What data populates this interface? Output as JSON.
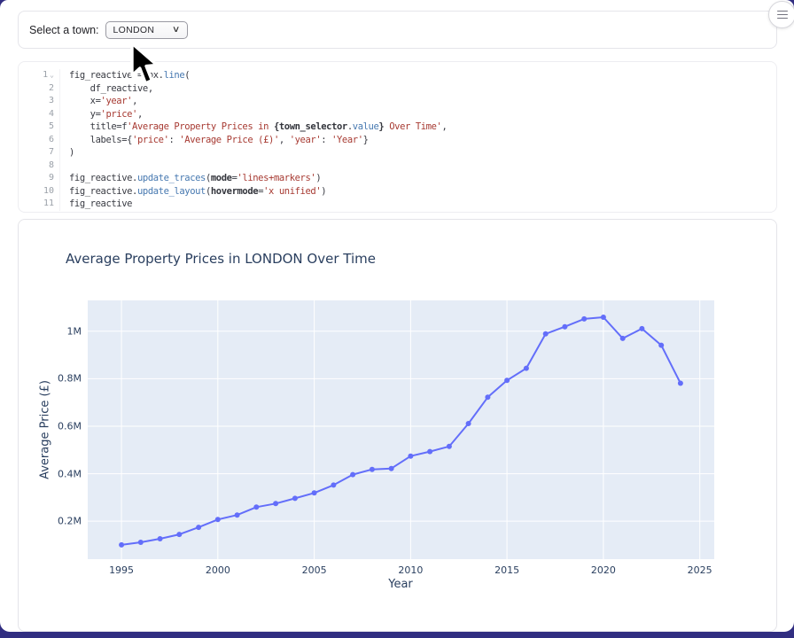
{
  "header": {
    "menu_icon": "hamburger-menu"
  },
  "selector_cell": {
    "label": "Select a town:",
    "selected_value": "LONDON"
  },
  "code_cell": {
    "lines": [
      {
        "n": 1,
        "fold": true,
        "seg": [
          [
            "p",
            "fig_reactive = px."
          ],
          [
            "m",
            "line"
          ],
          [
            "p",
            "("
          ]
        ]
      },
      {
        "n": 2,
        "seg": [
          [
            "p",
            "    df_reactive,"
          ]
        ]
      },
      {
        "n": 3,
        "seg": [
          [
            "p",
            "    x="
          ],
          [
            "s",
            "'year'"
          ],
          [
            "p",
            ","
          ]
        ]
      },
      {
        "n": 4,
        "seg": [
          [
            "p",
            "    y="
          ],
          [
            "s",
            "'price'"
          ],
          [
            "p",
            ","
          ]
        ]
      },
      {
        "n": 5,
        "seg": [
          [
            "p",
            "    title=f"
          ],
          [
            "s",
            "'Average Property Prices in "
          ],
          [
            "k",
            "{town_selector"
          ],
          [
            "p",
            "."
          ],
          [
            "m",
            "value"
          ],
          [
            "k",
            "}"
          ],
          [
            "s",
            " Over Time'"
          ],
          [
            "p",
            ","
          ]
        ]
      },
      {
        "n": 6,
        "seg": [
          [
            "p",
            "    labels={"
          ],
          [
            "s",
            "'price'"
          ],
          [
            "p",
            ": "
          ],
          [
            "s",
            "'Average Price (£)'"
          ],
          [
            "p",
            ", "
          ],
          [
            "s",
            "'year'"
          ],
          [
            "p",
            ": "
          ],
          [
            "s",
            "'Year'"
          ],
          [
            "p",
            "}"
          ]
        ]
      },
      {
        "n": 7,
        "seg": [
          [
            "p",
            ")"
          ]
        ]
      },
      {
        "n": 8,
        "seg": []
      },
      {
        "n": 9,
        "seg": [
          [
            "p",
            "fig_reactive."
          ],
          [
            "m",
            "update_traces"
          ],
          [
            "p",
            "("
          ],
          [
            "k",
            "mode"
          ],
          [
            "p",
            "="
          ],
          [
            "s",
            "'lines+markers'"
          ],
          [
            "p",
            ")"
          ]
        ]
      },
      {
        "n": 10,
        "seg": [
          [
            "p",
            "fig_reactive."
          ],
          [
            "m",
            "update_layout"
          ],
          [
            "p",
            "("
          ],
          [
            "k",
            "hovermode"
          ],
          [
            "p",
            "="
          ],
          [
            "s",
            "'x unified'"
          ],
          [
            "p",
            ")"
          ]
        ]
      },
      {
        "n": 11,
        "seg": [
          [
            "p",
            "fig_reactive"
          ]
        ]
      }
    ]
  },
  "chart_data": {
    "type": "line",
    "title": "Average Property Prices in LONDON Over Time",
    "xlabel": "Year",
    "ylabel": "Average Price (£)",
    "mode": "lines+markers",
    "line_color": "#636efa",
    "plot_bg": "#e5ecf6",
    "grid": true,
    "legend": false,
    "x": [
      1995,
      1996,
      1997,
      1998,
      1999,
      2000,
      2001,
      2002,
      2003,
      2004,
      2005,
      2006,
      2007,
      2008,
      2009,
      2010,
      2011,
      2012,
      2013,
      2014,
      2015,
      2016,
      2017,
      2018,
      2019,
      2020,
      2021,
      2022,
      2023,
      2024
    ],
    "y": [
      100000,
      111000,
      126000,
      144000,
      174000,
      207000,
      226000,
      259000,
      274000,
      296000,
      319000,
      352000,
      396000,
      418000,
      422000,
      474000,
      493000,
      515000,
      611000,
      722000,
      793000,
      844000,
      989000,
      1019000,
      1052000,
      1059000,
      970000,
      1011000,
      941000,
      781000
    ],
    "xlim": [
      1993.25,
      2025.75
    ],
    "ylim": [
      40000,
      1130000
    ],
    "xticks": {
      "values": [
        1995,
        2000,
        2005,
        2010,
        2015,
        2020,
        2025
      ],
      "labels": [
        "1995",
        "2000",
        "2005",
        "2010",
        "2015",
        "2020",
        "2025"
      ]
    },
    "yticks": {
      "values": [
        200000,
        400000,
        600000,
        800000,
        1000000
      ],
      "labels": [
        "0.2M",
        "0.4M",
        "0.6M",
        "0.8M",
        "1M"
      ]
    }
  },
  "colors": {
    "app_background": "#312e81",
    "chart_text": "#2a3f5f"
  }
}
